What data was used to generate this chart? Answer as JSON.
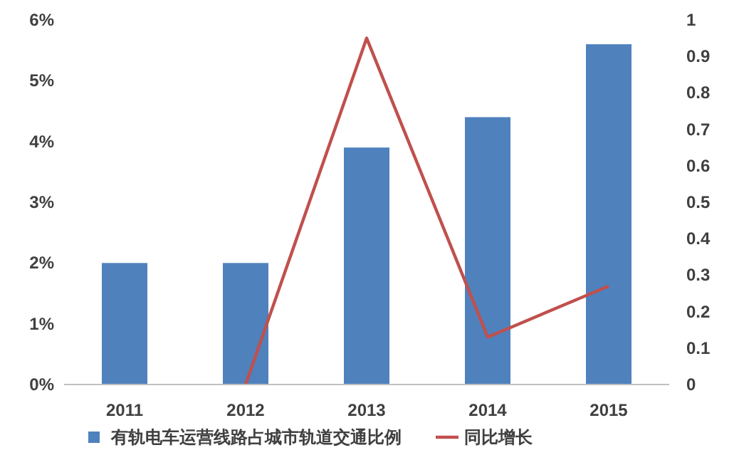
{
  "chart_data": {
    "type": "bar",
    "categories": [
      "2011",
      "2012",
      "2013",
      "2014",
      "2015"
    ],
    "series": [
      {
        "name": "有轨电车运营线路占城市轨道交通比例",
        "color": "#4f81bd",
        "values": [
          2,
          2,
          3.9,
          4.4,
          5.6
        ]
      },
      {
        "name": "同比增长",
        "type": "line",
        "axis": "y2",
        "color": "#c0504d",
        "values": [
          null,
          0,
          0.95,
          0.13,
          0.27
        ]
      }
    ],
    "ylim": [
      0,
      6
    ],
    "yticks": [
      {
        "value": 0,
        "label": "0%"
      },
      {
        "value": 1,
        "label": "1%"
      },
      {
        "value": 2,
        "label": "2%"
      },
      {
        "value": 3,
        "label": "3%"
      },
      {
        "value": 4,
        "label": "4%"
      },
      {
        "value": 5,
        "label": "5%"
      },
      {
        "value": 6,
        "label": "6%"
      }
    ],
    "y2lim": [
      0,
      1
    ],
    "y2ticks": [
      0,
      0.1,
      0.2,
      0.3,
      0.4,
      0.5,
      0.6,
      0.7,
      0.8,
      0.9,
      1
    ],
    "legend": "bottom",
    "grid": false
  }
}
